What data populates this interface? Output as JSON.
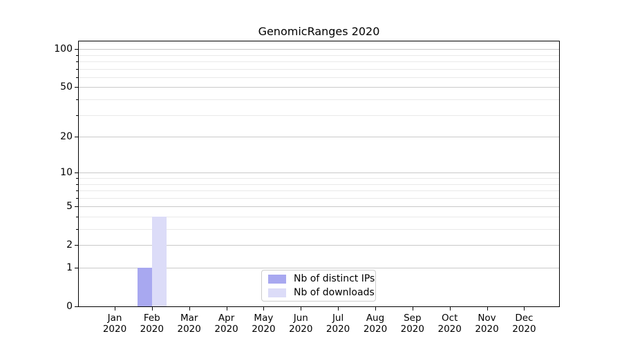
{
  "figure": {
    "background": "#ffffff"
  },
  "chart_data": {
    "type": "bar",
    "title": "GenomicRanges 2020",
    "categories": [
      "Jan",
      "Feb",
      "Mar",
      "Apr",
      "May",
      "Jun",
      "Jul",
      "Aug",
      "Sep",
      "Oct",
      "Nov",
      "Dec"
    ],
    "x_year_label": "2020",
    "series": [
      {
        "name": "Nb of distinct IPs",
        "color": "#a8a8f0",
        "values": [
          0,
          1,
          0,
          0,
          0,
          0,
          0,
          0,
          0,
          0,
          0,
          0
        ]
      },
      {
        "name": "Nb of downloads",
        "color": "#dcdcf8",
        "values": [
          0,
          4,
          0,
          0,
          0,
          0,
          0,
          0,
          0,
          0,
          0,
          0
        ]
      }
    ],
    "xlabel": "",
    "ylabel": "",
    "yscale": "log1p",
    "ylim": [
      0,
      115
    ],
    "y_major_ticks": [
      0,
      1,
      2,
      5,
      10,
      20,
      50,
      100
    ],
    "y_minor_gridlines": [
      3,
      4,
      6,
      7,
      8,
      9,
      30,
      40,
      60,
      70,
      80,
      90
    ],
    "grid": true,
    "legend_position": "lower center inside plot"
  },
  "colors": {
    "axis": "#000000",
    "text": "#000000",
    "major_grid": "#c9c9c9",
    "minor_grid": "#e9e9e9",
    "legend_border": "#cccccc",
    "legend_background": "#ffffff"
  }
}
